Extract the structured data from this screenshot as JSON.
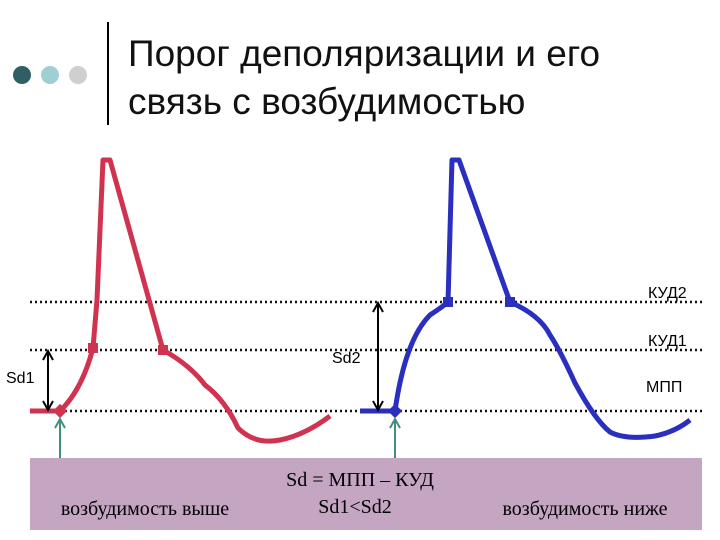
{
  "title": {
    "lines": [
      "Порог деполяризации и его",
      "связь с возбудимостью"
    ]
  },
  "levels": {
    "kud2": "КУД2",
    "kud1": "КУД1",
    "mpp": "МПП"
  },
  "arrows": {
    "left": "Sd1",
    "right": "Sd2"
  },
  "footer": {
    "formula": "Sd = МПП – КУД",
    "left": "возбудимость выше",
    "center": "Sd1<Sd2",
    "right": "возбудимость ниже"
  }
}
